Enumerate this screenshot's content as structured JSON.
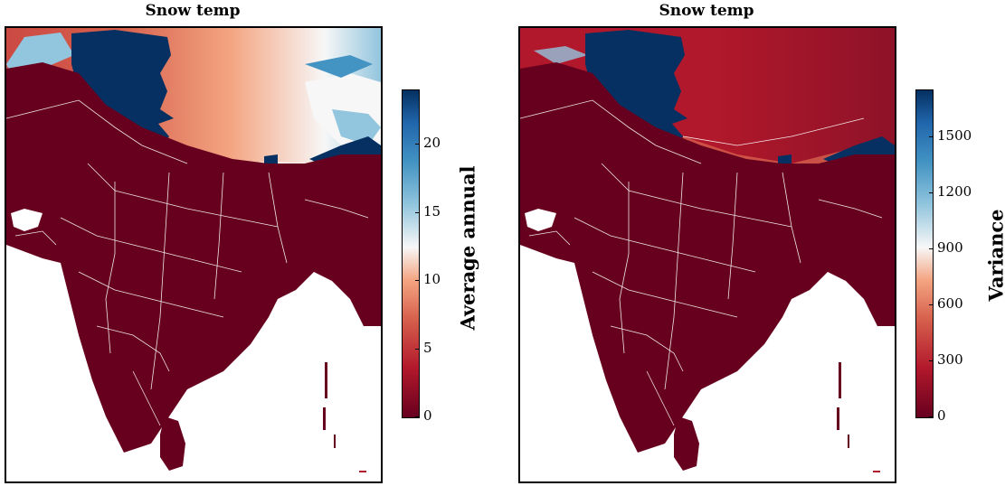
{
  "panels": [
    {
      "title": "Snow temp",
      "colorbar": {
        "label": "Average annual",
        "min": 0,
        "max": 24,
        "ticks": [
          0,
          5,
          10,
          15,
          20
        ],
        "tick_labels": [
          "0",
          "5",
          "10",
          "15",
          "20"
        ],
        "colormap": "RdBu"
      }
    },
    {
      "title": "Snow temp",
      "colorbar": {
        "label": "Variance",
        "min": 0,
        "max": 1750,
        "ticks": [
          0,
          300,
          600,
          900,
          1200,
          1500
        ],
        "tick_labels": [
          "0",
          "300",
          "600",
          "900",
          "1200",
          "1500"
        ],
        "colormap": "RdBu"
      }
    }
  ],
  "colors": {
    "dark_red": "#67001f",
    "red": "#b2182b",
    "light_red": "#d6604d",
    "salmon": "#f4a582",
    "white": "#f7f7f7",
    "light_blue": "#92c5de",
    "blue": "#4393c3",
    "mid_blue": "#2166ac",
    "dark_blue": "#053061",
    "border": "#ffffff"
  }
}
